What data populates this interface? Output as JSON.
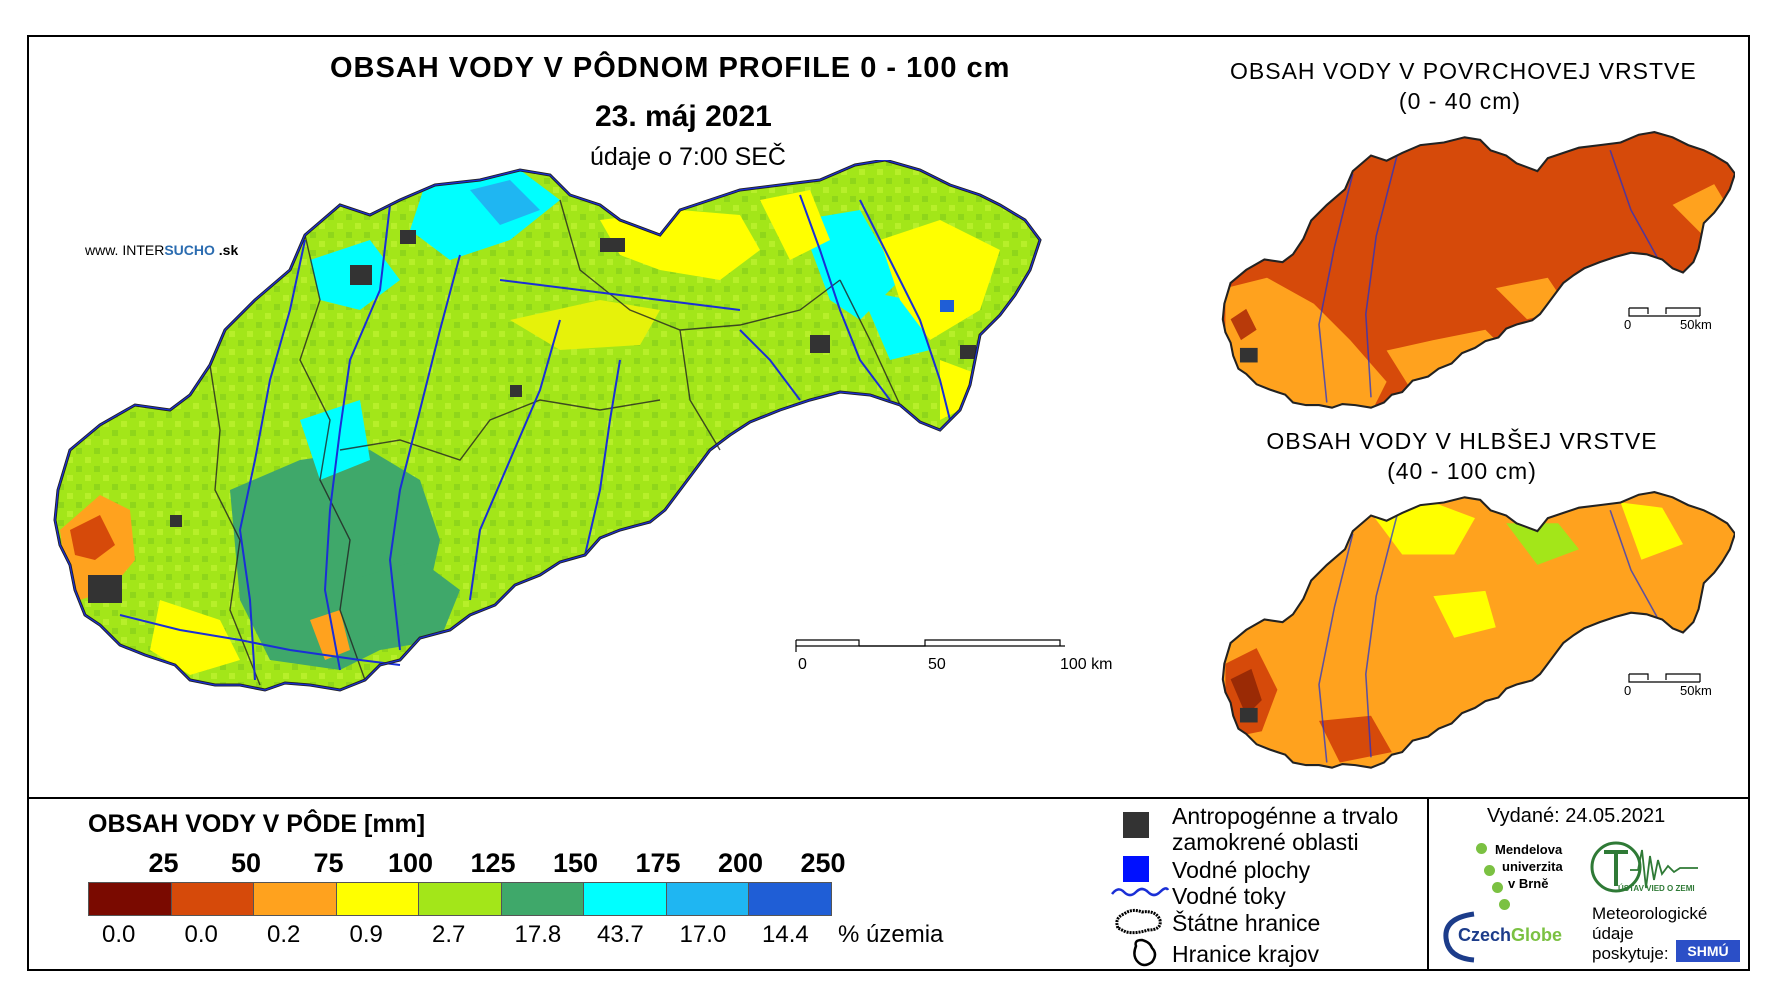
{
  "main_map": {
    "title": "OBSAH VODY V PÔDNOM PROFILE 0 - 100 cm",
    "date": "23. máj 2021",
    "time_note": "údaje o 7:00 SEČ",
    "scale": {
      "ticks": [
        "0",
        "50",
        "100 km"
      ]
    }
  },
  "watermark": {
    "prefix": "www. INTER",
    "brand": "SUCHO",
    "suffix": " .sk"
  },
  "surface_map": {
    "title_line1": "OBSAH VODY V POVRCHOVEJ VRSTVE",
    "title_line2": "(0 - 40 cm)",
    "scale": {
      "ticks": [
        "0",
        "50km"
      ]
    }
  },
  "deep_map": {
    "title_line1": "OBSAH VODY V HLBŠEJ VRSTVE",
    "title_line2": "(40 - 100 cm)",
    "scale": {
      "ticks": [
        "0",
        "50km"
      ]
    }
  },
  "legend": {
    "title": "OBSAH VODY V PÔDE [mm]",
    "thresholds": [
      "25",
      "50",
      "75",
      "100",
      "125",
      "150",
      "175",
      "200",
      "250"
    ],
    "classes": [
      {
        "color": "#7a0a00",
        "percent": "0.0"
      },
      {
        "color": "#d64a0a",
        "percent": "0.0"
      },
      {
        "color": "#ffa21e",
        "percent": "0.2"
      },
      {
        "color": "#ffff00",
        "percent": "0.9"
      },
      {
        "color": "#a3e619",
        "percent": "2.7"
      },
      {
        "color": "#3fa86a",
        "percent": "17.8"
      },
      {
        "color": "#00ffff",
        "percent": "43.7"
      },
      {
        "color": "#1fb6f2",
        "percent": "17.0"
      },
      {
        "color": "#1f5ed6",
        "percent": "14.4"
      }
    ],
    "percent_unit": "% územia"
  },
  "symbols": {
    "anthropogenic_line1": "Antropogénne a trvalo",
    "anthropogenic_line2": "zamokrené oblasti",
    "water_bodies": "Vodné plochy",
    "water_streams": "Vodné toky",
    "state_border": "Štátne hranice",
    "region_border": "Hranice krajov"
  },
  "issued": "Vydané: 24.05.2021",
  "logos": {
    "mendel_1": "Mendelova",
    "mendel_2": "univerzita",
    "mendel_3": "v Brně",
    "czechglobe_a": "Czech",
    "czechglobe_b": "Globe",
    "uvz": "ÚSTAV VIED O ZEMI",
    "meteo_1": "Meteorologické",
    "meteo_2": "údaje",
    "meteo_3": "poskytuje:",
    "shmu": "SHMÚ"
  },
  "colors": {
    "main_green": "#a3e619",
    "main_teal": "#3fa86a",
    "main_cyan": "#00ffff",
    "main_yellow": "#ffff00",
    "surface_base": "#d64a0a",
    "deep_base": "#ffa21e",
    "river": "#1a2fd6"
  }
}
